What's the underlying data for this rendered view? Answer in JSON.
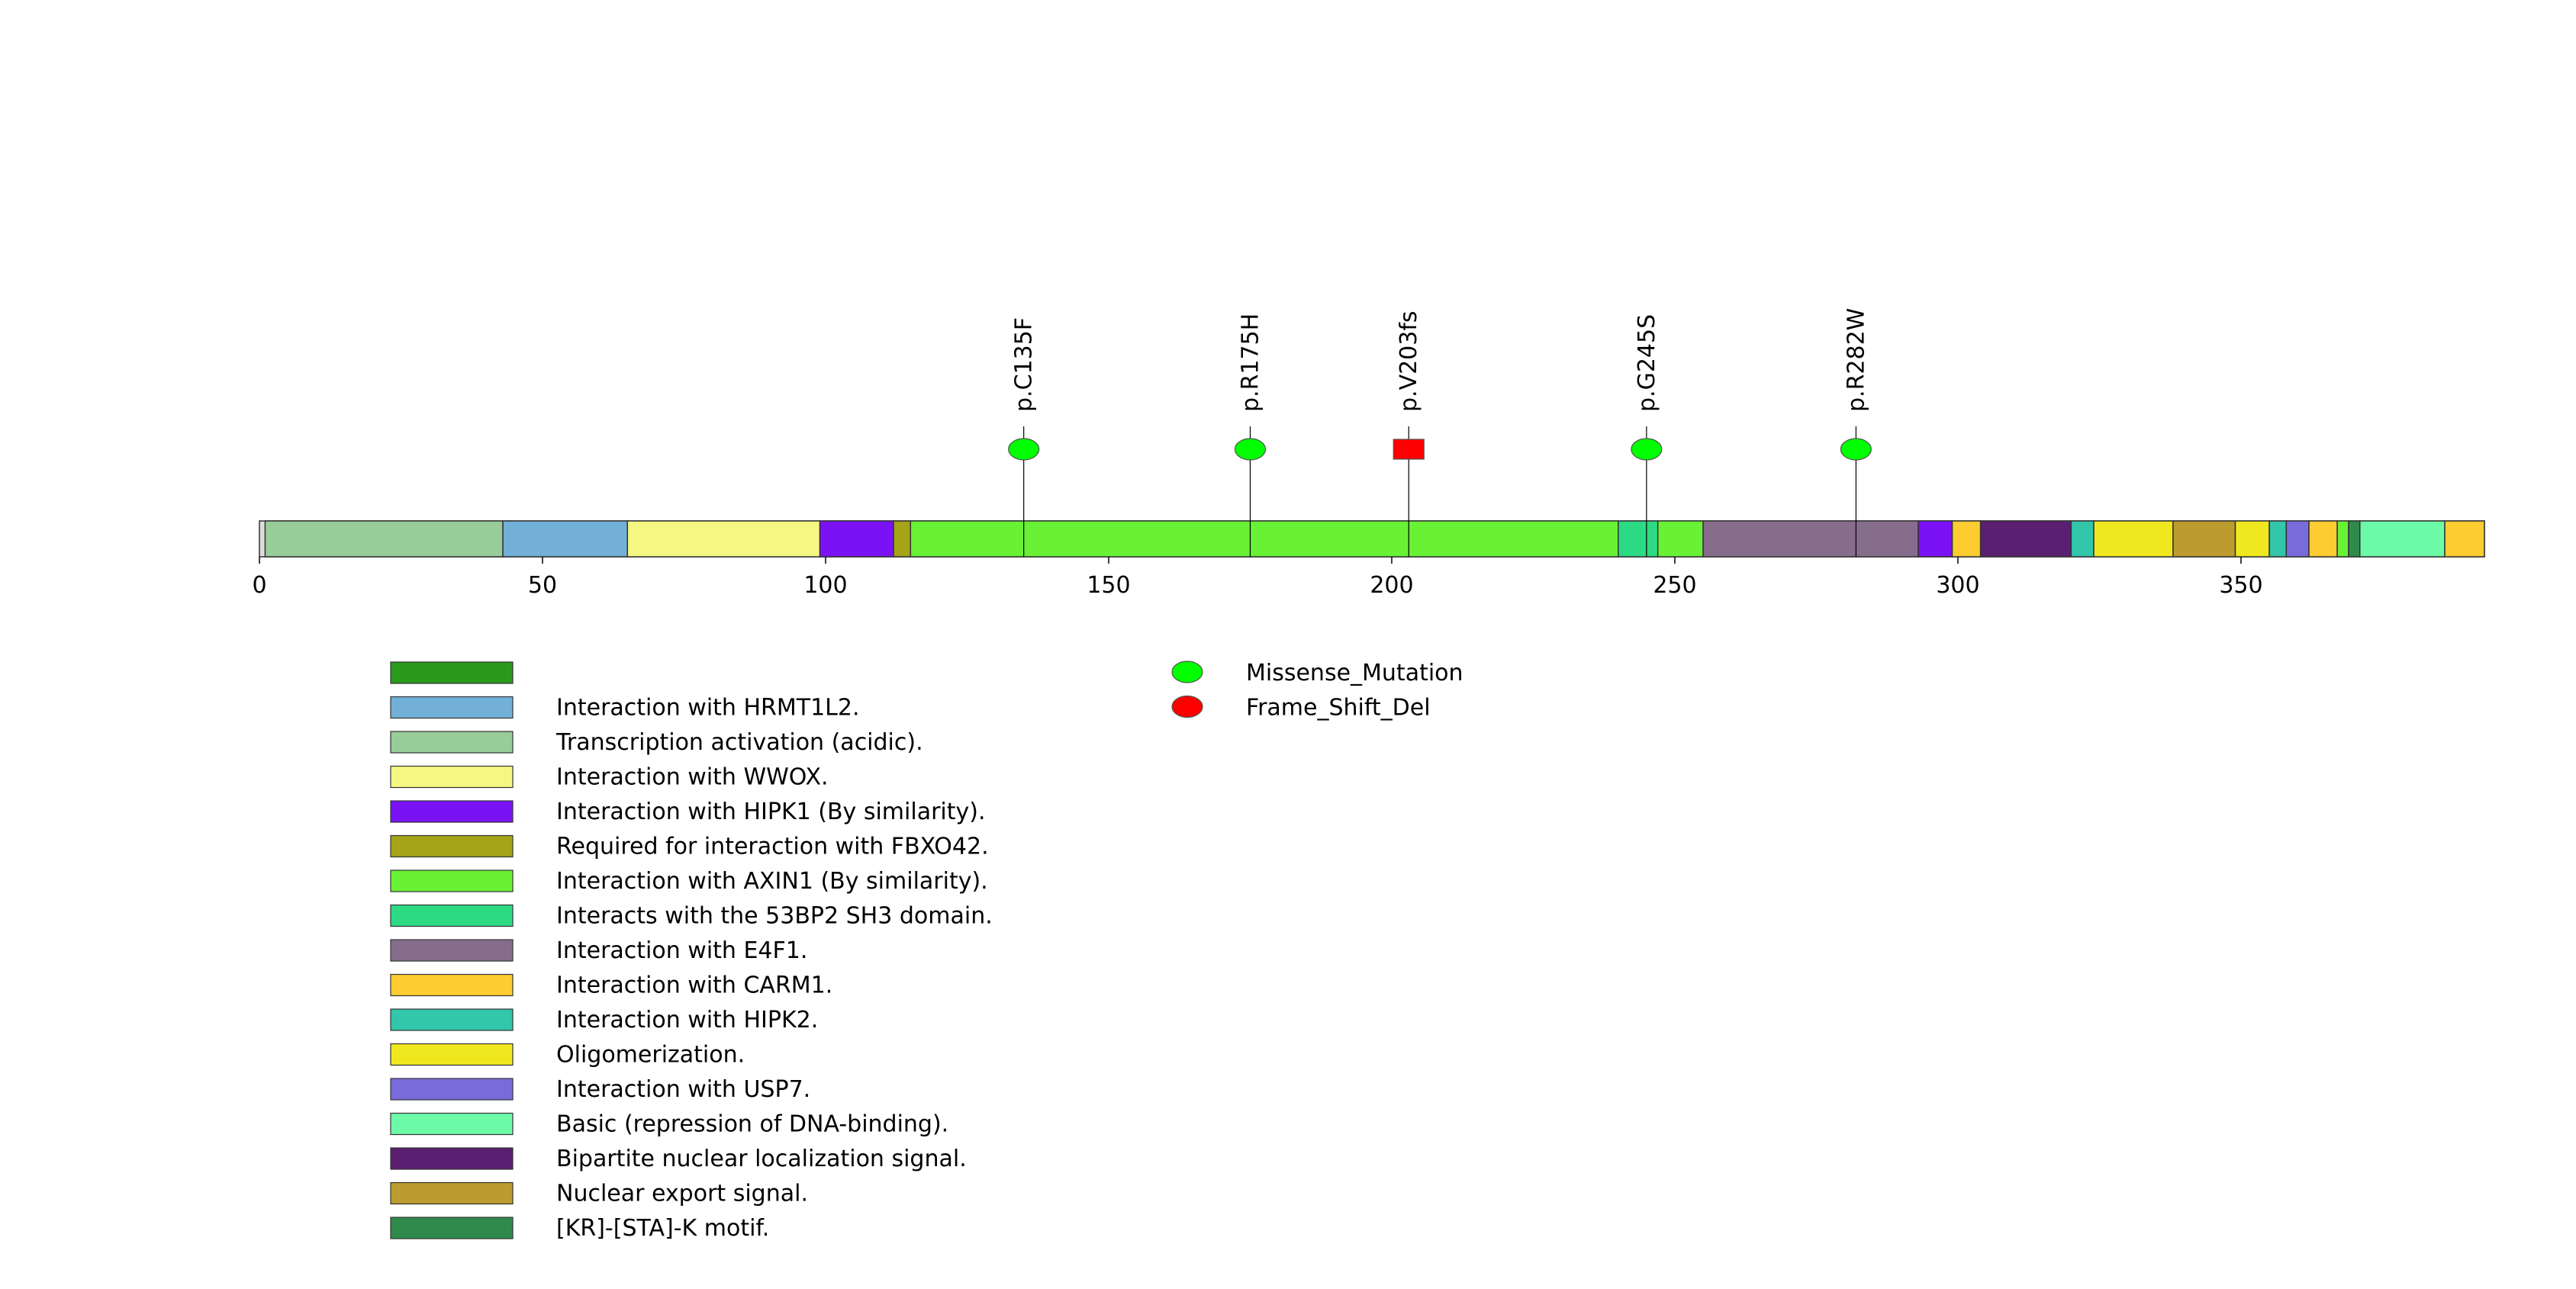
{
  "protein_length": 393,
  "axis": {
    "min": 0,
    "max": 393,
    "ticks": [
      0,
      50,
      100,
      150,
      200,
      250,
      300,
      350
    ],
    "tick_labels": [
      "0",
      "50",
      "100",
      "150",
      "200",
      "250",
      "300",
      "350"
    ]
  },
  "track_color": "#dddddd",
  "domains": [
    {
      "start": 1,
      "end": 43,
      "color": "#98cc98",
      "label": "Transcription activation (acidic)."
    },
    {
      "start": 43,
      "end": 65,
      "color": "#72b0d8",
      "label": "Interaction with HRMT1L2."
    },
    {
      "start": 65,
      "end": 99,
      "color": "#f4f782",
      "label": "Interaction with WWOX."
    },
    {
      "start": 99,
      "end": 112,
      "color": "#7b12f5",
      "label": "Interaction with HIPK1 (By similarity)."
    },
    {
      "start": 112,
      "end": 115,
      "color": "#a5a317",
      "label": "Required for interaction with FBXO42."
    },
    {
      "start": 115,
      "end": 240,
      "color": "#69f235",
      "label": "Interaction with AXIN1 (By similarity)."
    },
    {
      "start": 240,
      "end": 247,
      "color": "#2dda84",
      "label": "Interacts with the 53BP2 SH3 domain."
    },
    {
      "start": 247,
      "end": 255,
      "color": "#69f235",
      "label": "Interaction with AXIN1 (By similarity)."
    },
    {
      "start": 255,
      "end": 293,
      "color": "#876d8c",
      "label": "Interaction with E4F1."
    },
    {
      "start": 293,
      "end": 299,
      "color": "#7b12f5",
      "label": "Interaction with HIPK1 (By similarity)."
    },
    {
      "start": 299,
      "end": 304,
      "color": "#fdcc30",
      "label": "Interaction with CARM1."
    },
    {
      "start": 304,
      "end": 320,
      "color": "#5a1f71",
      "label": "Bipartite nuclear localization signal."
    },
    {
      "start": 320,
      "end": 324,
      "color": "#32c6aa",
      "label": "Interaction with HIPK2."
    },
    {
      "start": 324,
      "end": 338,
      "color": "#f0e81e",
      "label": "Oligomerization."
    },
    {
      "start": 338,
      "end": 349,
      "color": "#bc9c2f",
      "label": "Nuclear export signal."
    },
    {
      "start": 349,
      "end": 355,
      "color": "#f0e81e",
      "label": "Oligomerization."
    },
    {
      "start": 355,
      "end": 358,
      "color": "#32c6aa",
      "label": "Interaction with HIPK2."
    },
    {
      "start": 358,
      "end": 362,
      "color": "#7a6bda",
      "label": "Interaction with USP7."
    },
    {
      "start": 362,
      "end": 367,
      "color": "#fdcc30",
      "label": "Interaction with CARM1."
    },
    {
      "start": 367,
      "end": 369,
      "color": "#69f235",
      "label": "Interaction with AXIN1 (By similarity)."
    },
    {
      "start": 369,
      "end": 371,
      "color": "#2f8a4c",
      "label": "[KR]-[STA]-K motif."
    },
    {
      "start": 371,
      "end": 386,
      "color": "#6dfaa7",
      "label": "Basic (repression of DNA-binding)."
    },
    {
      "start": 386,
      "end": 393,
      "color": "#fdcc30",
      "label": "Interaction with CARM1."
    }
  ],
  "mutations": [
    {
      "pos": 135,
      "label": "p.C135F",
      "type": "Missense_Mutation"
    },
    {
      "pos": 175,
      "label": "p.R175H",
      "type": "Missense_Mutation"
    },
    {
      "pos": 203,
      "label": "p.V203fs",
      "type": "Frame_Shift_Del"
    },
    {
      "pos": 245,
      "label": "p.G245S",
      "type": "Missense_Mutation"
    },
    {
      "pos": 282,
      "label": "p.R282W",
      "type": "Missense_Mutation"
    }
  ],
  "mutation_legend": [
    {
      "label": "Missense_Mutation",
      "color": "#00ff00"
    },
    {
      "label": "Frame_Shift_Del",
      "color": "#ff0000"
    }
  ],
  "domain_legend": [
    {
      "label": "",
      "color": "#2a9a1c"
    },
    {
      "label": "Interaction with HRMT1L2.",
      "color": "#72b0d8"
    },
    {
      "label": "Transcription activation (acidic).",
      "color": "#98cc98"
    },
    {
      "label": "Interaction with WWOX.",
      "color": "#f4f782"
    },
    {
      "label": "Interaction with HIPK1 (By similarity).",
      "color": "#7b12f5"
    },
    {
      "label": "Required for interaction with FBXO42.",
      "color": "#a5a317"
    },
    {
      "label": "Interaction with AXIN1 (By similarity).",
      "color": "#69f235"
    },
    {
      "label": "Interacts with the 53BP2 SH3 domain.",
      "color": "#2dda84"
    },
    {
      "label": "Interaction with E4F1.",
      "color": "#876d8c"
    },
    {
      "label": "Interaction with CARM1.",
      "color": "#fdcc30"
    },
    {
      "label": "Interaction with HIPK2.",
      "color": "#32c6aa"
    },
    {
      "label": "Oligomerization.",
      "color": "#f0e81e"
    },
    {
      "label": "Interaction with USP7.",
      "color": "#7a6bda"
    },
    {
      "label": "Basic (repression of DNA-binding).",
      "color": "#6dfaa7"
    },
    {
      "label": "Bipartite nuclear localization signal.",
      "color": "#5a1f71"
    },
    {
      "label": "Nuclear export signal.",
      "color": "#bc9c2f"
    },
    {
      "label": "[KR]-[STA]-K motif.",
      "color": "#2f8a4c"
    }
  ]
}
